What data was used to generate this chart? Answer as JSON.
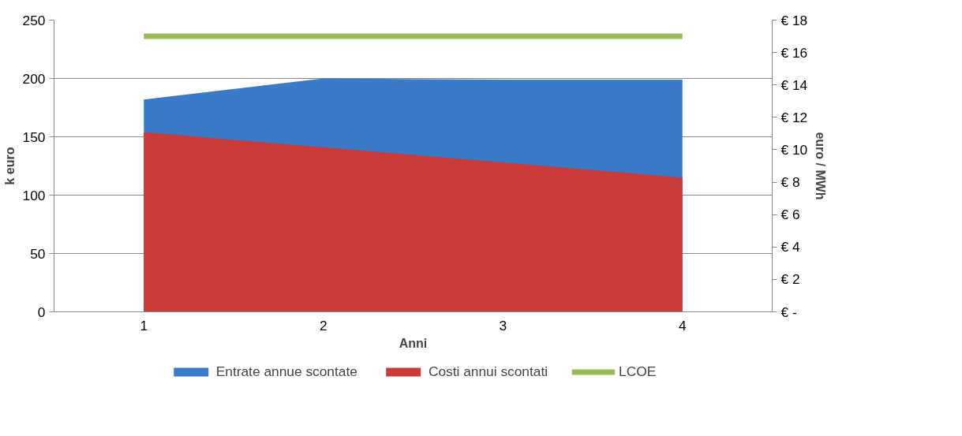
{
  "chart_data": {
    "type": "area",
    "xlabel": "Anni",
    "ylabel": "k euro",
    "y2label": "euro / MWh",
    "categories": [
      "1",
      "2",
      "3",
      "4"
    ],
    "series": [
      {
        "name": "Entrate annue scontate",
        "color": "#3a7bc8",
        "values": [
          182,
          200,
          199,
          199
        ]
      },
      {
        "name": "Costi annui scontati",
        "color": "#c93c3a",
        "values": [
          154,
          141,
          128,
          115
        ]
      },
      {
        "name": "LCOE",
        "color": "#9bbb59",
        "type": "line",
        "axis": "y2",
        "values": [
          17,
          17,
          17,
          17
        ]
      }
    ],
    "ylim": [
      0,
      250
    ],
    "yticks": [
      0,
      50,
      100,
      150,
      200,
      250
    ],
    "y2lim": [
      0,
      18
    ],
    "y2ticks": [
      {
        "value": 0,
        "label": "€ -"
      },
      {
        "value": 2,
        "label": "€ 2"
      },
      {
        "value": 4,
        "label": "€ 4"
      },
      {
        "value": 6,
        "label": "€ 6"
      },
      {
        "value": 8,
        "label": "€ 8"
      },
      {
        "value": 10,
        "label": "€ 10"
      },
      {
        "value": 12,
        "label": "€ 12"
      },
      {
        "value": 14,
        "label": "€ 14"
      },
      {
        "value": 16,
        "label": "€ 16"
      },
      {
        "value": 18,
        "label": "€ 18"
      }
    ],
    "grid": "y",
    "legend": "bottom"
  }
}
